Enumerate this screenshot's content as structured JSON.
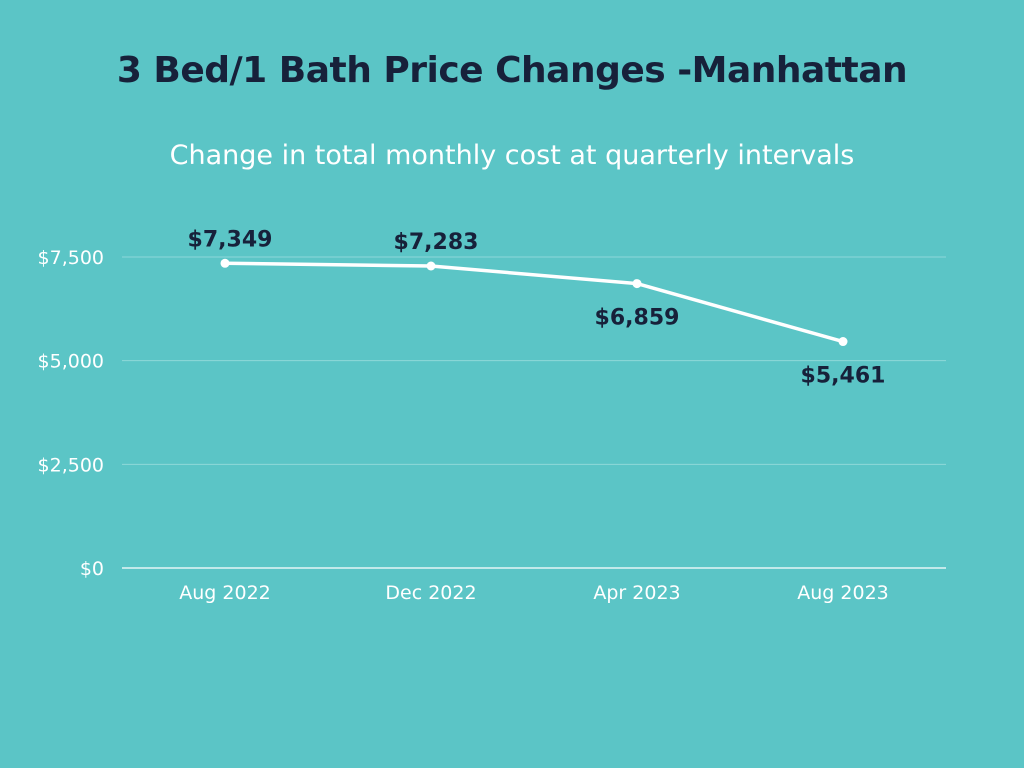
{
  "chart_data": {
    "type": "line",
    "title": "3 Bed/1 Bath Price Changes -Manhattan",
    "subtitle": "Change in total monthly cost at quarterly intervals",
    "categories": [
      "Aug 2022",
      "Dec 2022",
      "Apr 2023",
      "Aug 2023"
    ],
    "series": [
      {
        "name": "Total monthly cost",
        "values": [
          7349,
          7283,
          6859,
          5461
        ]
      }
    ],
    "data_labels": [
      "$7,349",
      "$7,283",
      "$6,859",
      "$5,461"
    ],
    "yticks": [
      0,
      2500,
      5000,
      7500
    ],
    "ytick_labels": [
      "$0",
      "$2,500",
      "$5,000",
      "$7,500"
    ],
    "ylim": [
      0,
      7500
    ],
    "xlabel": "",
    "ylabel": "",
    "grid": true,
    "legend": "none",
    "colors": {
      "background": "#5bc5c6",
      "line": "#ffffff",
      "gridline": "#8ed8d9",
      "title": "#17213a",
      "labels": "#17213a"
    }
  }
}
